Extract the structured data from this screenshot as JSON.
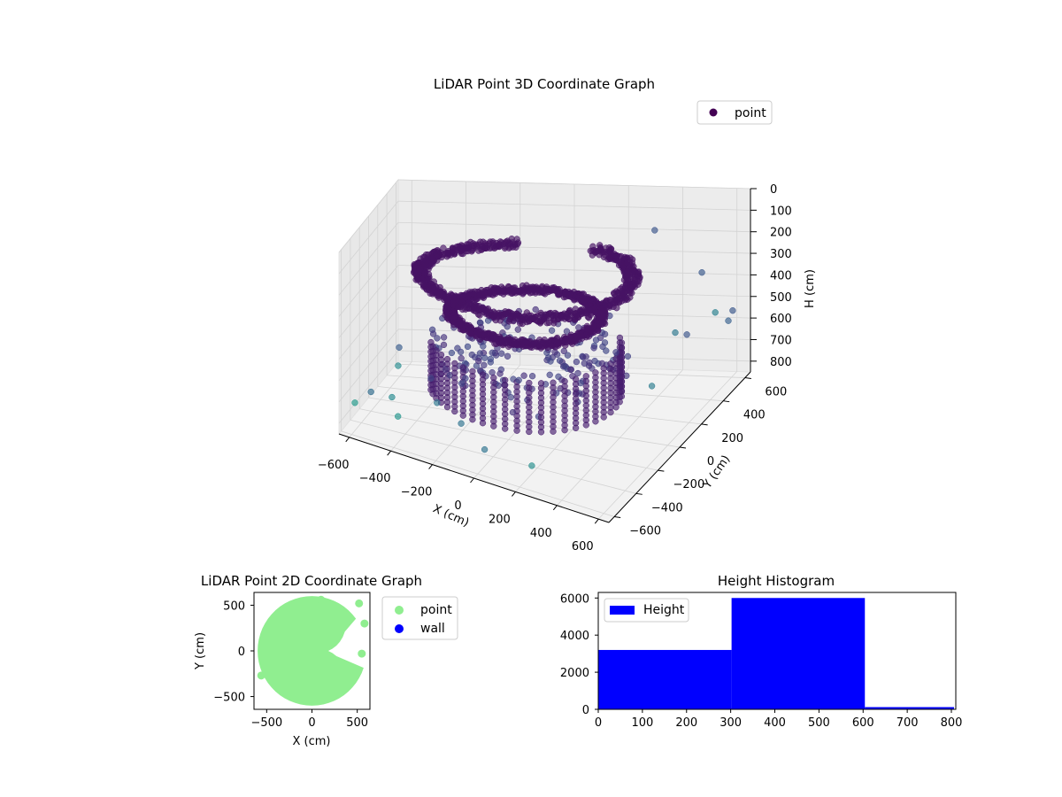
{
  "chart_data": [
    {
      "type": "scatter",
      "title": "LiDAR Point 3D Coordinate Graph",
      "xlabel": "X (cm)",
      "ylabel": "Y (cm)",
      "zlabel": "H (cm)",
      "xlim": [
        -650,
        650
      ],
      "ylim": [
        -650,
        650
      ],
      "zlim": [
        850,
        0
      ],
      "x_ticks": [
        -600,
        -400,
        -200,
        0,
        200,
        400,
        600
      ],
      "y_ticks": [
        -600,
        -400,
        -200,
        0,
        200,
        400,
        600
      ],
      "z_ticks": [
        0,
        100,
        200,
        300,
        400,
        500,
        600,
        700,
        800
      ],
      "grid": true,
      "legend": {
        "position": "top-right",
        "entries": [
          "point"
        ]
      },
      "series": [
        {
          "name": "point",
          "color": "#440154",
          "colormap": "viridis",
          "structure": [
            {
              "shape": "ring",
              "radius": 420,
              "z": 190,
              "thickness": 60,
              "arc_deg": [
                110,
                430
              ]
            },
            {
              "shape": "ring",
              "radius": 300,
              "z": 360,
              "thickness": 40,
              "arc_deg": [
                0,
                360
              ]
            },
            {
              "shape": "wall",
              "radius": 380,
              "z_range": [
                500,
                720
              ],
              "arc_deg": [
                200,
                400
              ]
            }
          ],
          "outliers": [
            {
              "x": -640,
              "y": -350,
              "z": 780
            },
            {
              "x": -600,
              "y": -200,
              "z": 760
            },
            {
              "x": -560,
              "y": 180,
              "z": 650
            },
            {
              "x": -500,
              "y": -120,
              "z": 640
            },
            {
              "x": -430,
              "y": -520,
              "z": 650
            },
            {
              "x": -380,
              "y": -600,
              "z": 700
            },
            {
              "x": -250,
              "y": -420,
              "z": 660
            },
            {
              "x": -120,
              "y": -480,
              "z": 700
            },
            {
              "x": 40,
              "y": -620,
              "z": 720
            },
            {
              "x": 240,
              "y": -560,
              "z": 760
            },
            {
              "x": 520,
              "y": 260,
              "z": 480
            },
            {
              "x": 600,
              "y": 180,
              "z": 440
            },
            {
              "x": 640,
              "y": 350,
              "z": 420
            },
            {
              "x": 620,
              "y": 560,
              "z": 520
            },
            {
              "x": 580,
              "y": 620,
              "z": 600
            },
            {
              "x": 560,
              "y": -60,
              "z": 560
            },
            {
              "x": 520,
              "y": 520,
              "z": 330
            },
            {
              "x": 300,
              "y": 640,
              "z": 200
            }
          ]
        }
      ]
    },
    {
      "type": "scatter",
      "title": "LiDAR Point 2D Coordinate Graph",
      "xlabel": "X (cm)",
      "ylabel": "Y (cm)",
      "xlim": [
        -640,
        640
      ],
      "ylim": [
        -640,
        640
      ],
      "x_ticks": [
        -500,
        0,
        500
      ],
      "y_ticks": [
        -500,
        0,
        500
      ],
      "legend": {
        "position": "outside-right",
        "entries": [
          "point",
          "wall"
        ]
      },
      "series": [
        {
          "name": "point",
          "color": "#90ee90",
          "points": [
            {
              "x": -560,
              "y": -270
            },
            {
              "x": 550,
              "y": -30
            },
            {
              "x": 520,
              "y": 520
            },
            {
              "x": 580,
              "y": 300
            },
            {
              "x": -500,
              "y": 100
            },
            {
              "x": 100,
              "y": 560
            }
          ]
        },
        {
          "name": "wall",
          "color": "#0000ff",
          "points": []
        }
      ]
    },
    {
      "type": "bar",
      "title": "Height Histogram",
      "xlabel": "",
      "ylabel": "",
      "xlim": [
        0,
        810
      ],
      "ylim": [
        0,
        6300
      ],
      "x_ticks": [
        0,
        100,
        200,
        300,
        400,
        500,
        600,
        700,
        800
      ],
      "y_ticks": [
        0,
        2000,
        4000,
        6000
      ],
      "legend": {
        "position": "top-left",
        "entries": [
          "Height"
        ]
      },
      "series": [
        {
          "name": "Height",
          "color": "#0000ff",
          "bins": [
            {
              "x0": 0,
              "x1": 302,
              "value": 3200
            },
            {
              "x0": 302,
              "x1": 604,
              "value": 6000
            },
            {
              "x0": 604,
              "x1": 806,
              "value": 120
            }
          ]
        }
      ]
    }
  ]
}
